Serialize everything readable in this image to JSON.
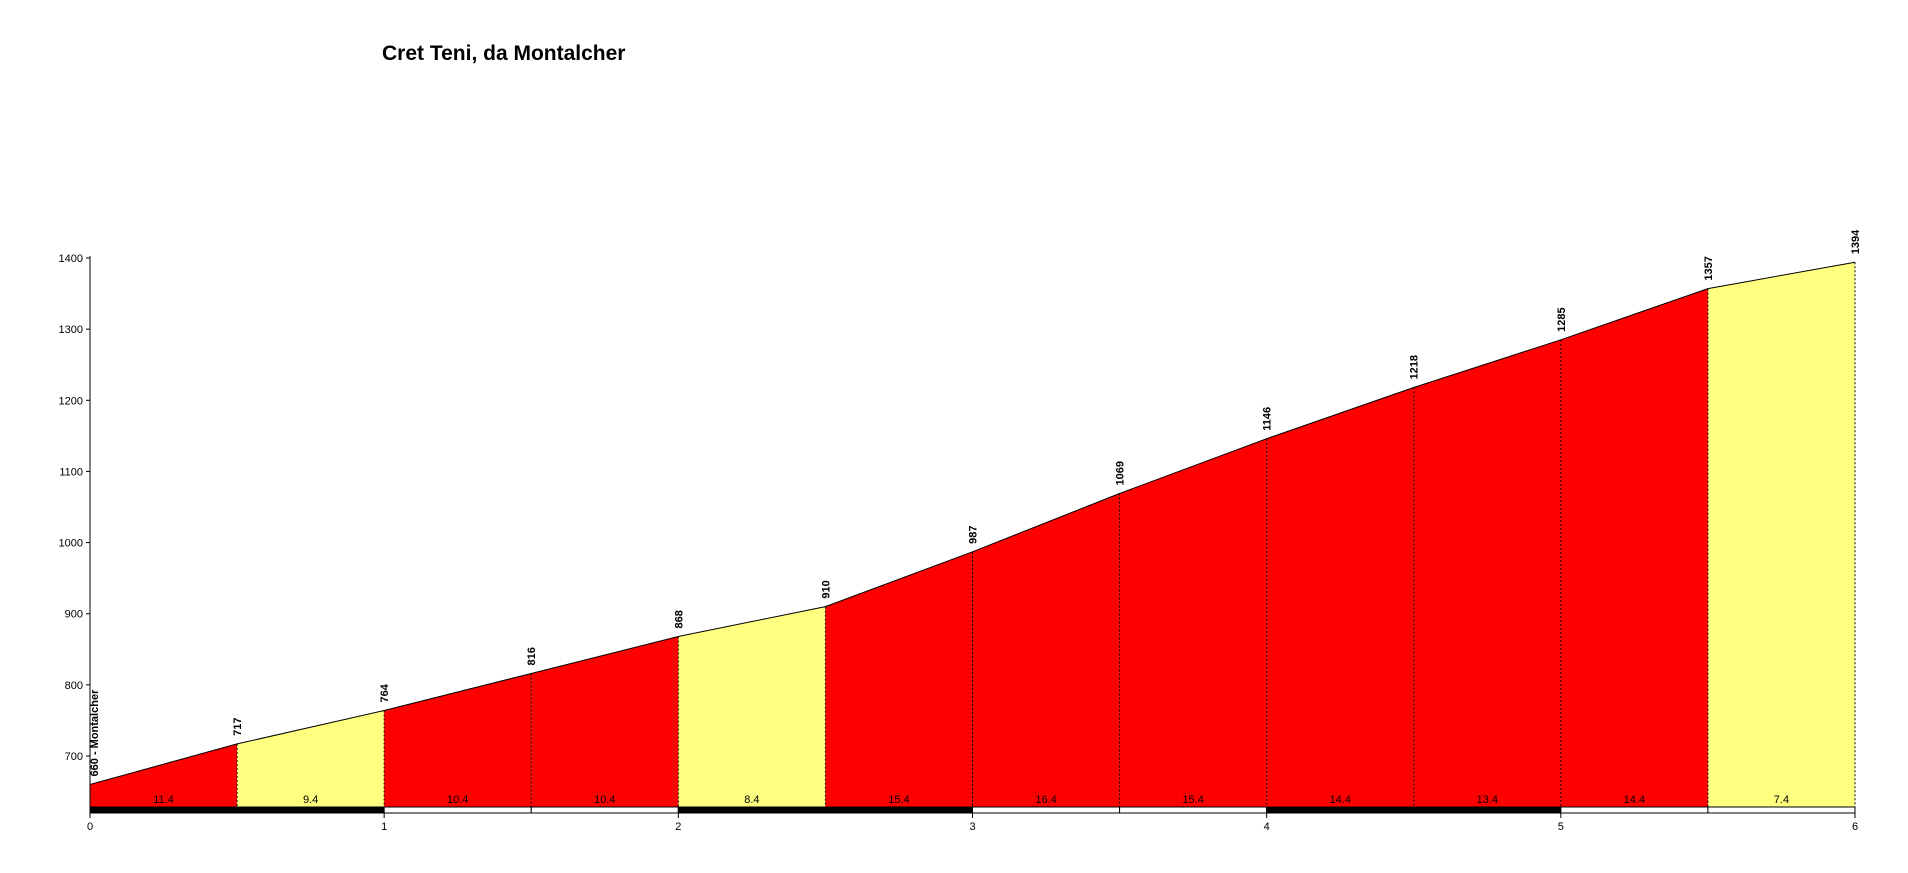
{
  "chart_data": {
    "type": "area",
    "title": "Cret Teni, da Montalcher",
    "xlabel": "",
    "ylabel": "",
    "xlim": [
      0,
      6
    ],
    "ylim": [
      620,
      1400
    ],
    "x_ticks": [
      "0",
      "1",
      "2",
      "3",
      "4",
      "5",
      "6"
    ],
    "y_ticks": [
      "700",
      "800",
      "900",
      "1000",
      "1100",
      "1200",
      "1300",
      "1400"
    ],
    "start_label": "660 - Montalcher",
    "points": [
      {
        "x": 0,
        "y": 660
      },
      {
        "x": 0.5,
        "y": 717
      },
      {
        "x": 1,
        "y": 764
      },
      {
        "x": 1.5,
        "y": 816
      },
      {
        "x": 2,
        "y": 868
      },
      {
        "x": 2.5,
        "y": 910
      },
      {
        "x": 3,
        "y": 987
      },
      {
        "x": 3.5,
        "y": 1069
      },
      {
        "x": 4,
        "y": 1146
      },
      {
        "x": 4.5,
        "y": 1218
      },
      {
        "x": 5,
        "y": 1285
      },
      {
        "x": 5.5,
        "y": 1357
      },
      {
        "x": 6,
        "y": 1394
      }
    ],
    "elevation_labels": [
      "717",
      "764",
      "816",
      "868",
      "910",
      "987",
      "1069",
      "1146",
      "1218",
      "1285",
      "1357",
      "1394"
    ],
    "segments": [
      {
        "from": 0,
        "to": 0.5,
        "grade": "11.4",
        "color": "#ff0000"
      },
      {
        "from": 0.5,
        "to": 1,
        "grade": "9.4",
        "color": "#ffff80"
      },
      {
        "from": 1,
        "to": 1.5,
        "grade": "10.4",
        "color": "#ff0000"
      },
      {
        "from": 1.5,
        "to": 2,
        "grade": "10.4",
        "color": "#ff0000"
      },
      {
        "from": 2,
        "to": 2.5,
        "grade": "8.4",
        "color": "#ffff80"
      },
      {
        "from": 2.5,
        "to": 3,
        "grade": "15.4",
        "color": "#ff0000"
      },
      {
        "from": 3,
        "to": 3.5,
        "grade": "16.4",
        "color": "#ff0000"
      },
      {
        "from": 3.5,
        "to": 4,
        "grade": "15.4",
        "color": "#ff0000"
      },
      {
        "from": 4,
        "to": 4.5,
        "grade": "14.4",
        "color": "#ff0000"
      },
      {
        "from": 4.5,
        "to": 5,
        "grade": "13.4",
        "color": "#ff0000"
      },
      {
        "from": 5,
        "to": 5.5,
        "grade": "14.4",
        "color": "#ff0000"
      },
      {
        "from": 5.5,
        "to": 6,
        "grade": "7.4",
        "color": "#ffff80"
      }
    ],
    "colors": {
      "steep": "#ff0000",
      "moderate": "#ffff80"
    },
    "grid": false,
    "legend": "none"
  }
}
